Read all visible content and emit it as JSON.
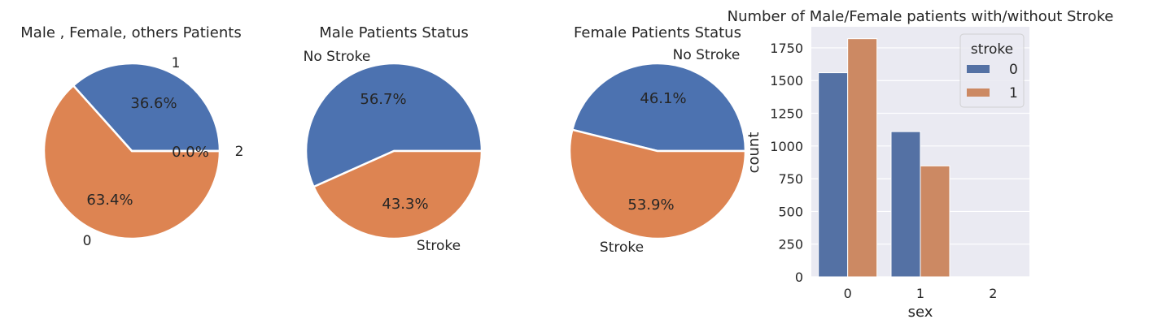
{
  "chart_data": [
    {
      "type": "pie",
      "title": "Male , Female, others Patients",
      "labels": [
        "1",
        "0",
        "2"
      ],
      "values": [
        36.6,
        63.4,
        0.0
      ],
      "pct_labels": [
        "36.6%",
        "63.4%",
        "0.0%"
      ],
      "start_angle": 0,
      "colors": [
        "#4c72b0",
        "#dd8452",
        "#55a868"
      ]
    },
    {
      "type": "pie",
      "title": "Male Patients Status",
      "labels": [
        "No Stroke",
        "Stroke"
      ],
      "values": [
        56.7,
        43.3
      ],
      "pct_labels": [
        "56.7%",
        "43.3%"
      ],
      "start_angle": 0,
      "colors": [
        "#4c72b0",
        "#dd8452"
      ]
    },
    {
      "type": "pie",
      "title": "Female Patients Status",
      "labels": [
        "No Stroke",
        "Stroke"
      ],
      "values": [
        46.1,
        53.9
      ],
      "pct_labels": [
        "46.1%",
        "53.9%"
      ],
      "start_angle": 0,
      "colors": [
        "#4c72b0",
        "#dd8452"
      ]
    },
    {
      "type": "bar",
      "title": "Number of Male/Female patients with/without Stroke",
      "categories": [
        "0",
        "1",
        "2"
      ],
      "series": [
        {
          "name": "0",
          "values": [
            1560,
            1110,
            0
          ],
          "color": "#5471a4"
        },
        {
          "name": "1",
          "values": [
            1820,
            848,
            0
          ],
          "color": "#cc8963"
        }
      ],
      "xlabel": "sex",
      "ylabel": "count",
      "ylim": [
        0,
        1911
      ],
      "yticks": [
        0,
        250,
        500,
        750,
        1000,
        1250,
        1500,
        1750
      ],
      "grid": true,
      "legend_title": "stroke",
      "legend_position": "top-right"
    }
  ]
}
